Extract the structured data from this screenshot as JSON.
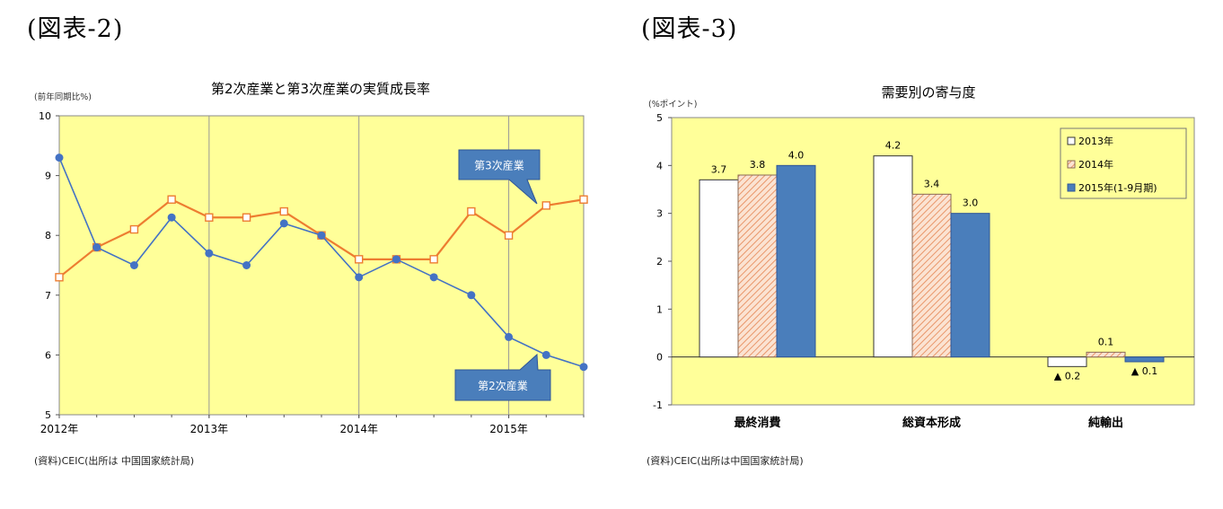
{
  "figures": {
    "left_label": "(図表-2)",
    "right_label": "(図表-3)"
  },
  "chart_data": [
    {
      "type": "line",
      "title": "第2次産業と第3次産業の実質成長率",
      "ylabel": "(前年同期比%)",
      "ylim": [
        5,
        10
      ],
      "yticks": [
        "5",
        "6",
        "7",
        "8",
        "9",
        "10"
      ],
      "x_tick_labels": [
        "2012年",
        "2013年",
        "2014年",
        "2015年"
      ],
      "grid": "vertical at year marks",
      "series": [
        {
          "name": "第3次産業",
          "color": "#ED7D31",
          "marker": "square",
          "values": [
            7.3,
            7.8,
            8.1,
            8.6,
            8.3,
            8.3,
            8.4,
            8.0,
            7.6,
            7.6,
            7.6,
            8.4,
            8.0,
            8.5,
            8.6
          ]
        },
        {
          "name": "第2次産業",
          "color": "#4472C4",
          "marker": "circle",
          "values": [
            9.3,
            7.8,
            7.5,
            8.3,
            7.7,
            7.5,
            8.2,
            8.0,
            7.3,
            7.6,
            7.3,
            7.0,
            6.3,
            6.0,
            5.8
          ]
        }
      ],
      "callouts": [
        "第3次産業",
        "第2次産業"
      ],
      "source": "(資料)CEIC(出所は 中国国家統計局)"
    },
    {
      "type": "bar",
      "title": "需要別の寄与度",
      "ylabel": "(%ポイント)",
      "ylim": [
        -1,
        5
      ],
      "yticks": [
        "-1",
        "0",
        "1",
        "2",
        "3",
        "4",
        "5"
      ],
      "categories": [
        "最終消費",
        "総資本形成",
        "純輸出"
      ],
      "legend_position": "top-right",
      "series": [
        {
          "name": "2013年",
          "style": "white",
          "values": [
            3.7,
            4.2,
            -0.2
          ],
          "labels": [
            "3.7",
            "4.2",
            "▲ 0.2"
          ]
        },
        {
          "name": "2014年",
          "style": "hatched",
          "values": [
            3.8,
            3.4,
            0.1
          ],
          "labels": [
            "3.8",
            "3.4",
            "0.1"
          ]
        },
        {
          "name": "2015年(1-9月期)",
          "style": "blue",
          "values": [
            4.0,
            3.0,
            -0.1
          ],
          "labels": [
            "4.0",
            "3.0",
            "▲ 0.1"
          ]
        }
      ],
      "source": "(資料)CEIC(出所は中国国家統計局)"
    }
  ]
}
